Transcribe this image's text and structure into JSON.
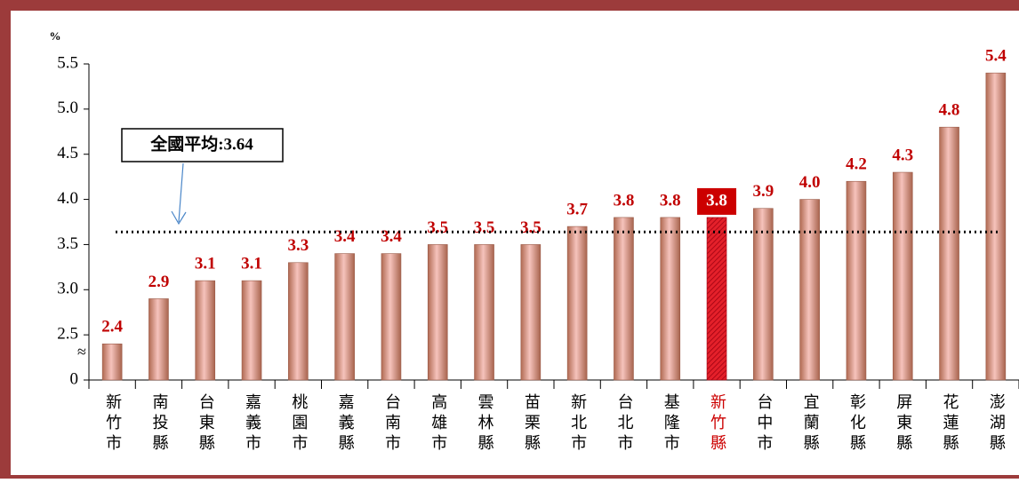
{
  "chart_data": {
    "type": "bar",
    "ylabel": "%",
    "categories": [
      "新竹市",
      "南投縣",
      "台東縣",
      "嘉義市",
      "桃園市",
      "嘉義縣",
      "台南市",
      "高雄市",
      "雲林縣",
      "苗栗縣",
      "新北市",
      "台北市",
      "基隆市",
      "新竹縣",
      "台中市",
      "宜蘭縣",
      "彰化縣",
      "屏東縣",
      "花蓮縣",
      "澎湖縣"
    ],
    "values": [
      2.4,
      2.9,
      3.1,
      3.1,
      3.3,
      3.4,
      3.4,
      3.5,
      3.5,
      3.5,
      3.7,
      3.8,
      3.8,
      3.8,
      3.9,
      4.0,
      4.2,
      4.3,
      4.8,
      5.4
    ],
    "value_labels": [
      "2.4",
      "2.9",
      "3.1",
      "3.1",
      "3.3",
      "3.4",
      "3.4",
      "3.5",
      "3.5",
      "3.5",
      "3.7",
      "3.8",
      "3.8",
      "3.8",
      "3.9",
      "4.0",
      "4.2",
      "4.3",
      "4.8",
      "5.4"
    ],
    "color": "#d9938a",
    "highlight_index": 13,
    "highlight_color": "#cc0000",
    "ylim": [
      0,
      5.5
    ],
    "axis_break": [
      0,
      2
    ],
    "break_symbol": "≈",
    "yticks": [
      0,
      2.5,
      {
        "value": 3,
        "label": "3.0"
      },
      3.5,
      {
        "value": 4,
        "label": "4.0"
      },
      4.5,
      {
        "value": 5,
        "label": "5.0"
      },
      5.5
    ],
    "reference_line": {
      "value": 3.64,
      "label": "全國平均:3.64"
    }
  }
}
